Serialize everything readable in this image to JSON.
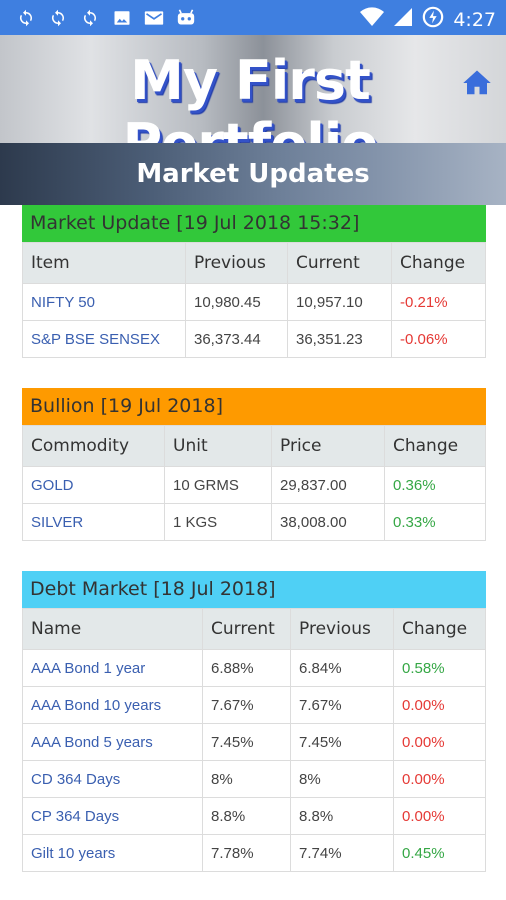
{
  "status_bar": {
    "time": "4:27",
    "left_icons": [
      "sync-icon",
      "sync-icon",
      "sync-icon",
      "image-icon",
      "mail-icon",
      "bot-icon"
    ],
    "right_icons": [
      "wifi-icon",
      "signal-icon",
      "battery-charging-icon"
    ]
  },
  "header": {
    "app_title": "My First Portfolio",
    "home_icon": "home-icon",
    "subtitle": "Market Updates"
  },
  "colors": {
    "status_bar": "#3f7fe0",
    "market_header": "#32c83a",
    "bullion_header": "#fe9a00",
    "debt_header": "#4fd0f5",
    "negative": "#e53935",
    "positive": "#35a745",
    "link": "#3a5fb0"
  },
  "market": {
    "title": "Market Update [19 Jul 2018 15:32]",
    "columns": [
      "Item",
      "Previous",
      "Current",
      "Change"
    ],
    "rows": [
      [
        "NIFTY 50",
        "10,980.45",
        "10,957.10",
        "-0.21%"
      ],
      [
        "S&P BSE SENSEX",
        "36,373.44",
        "36,351.23",
        "-0.06%"
      ]
    ]
  },
  "bullion": {
    "title": "Bullion [19 Jul 2018]",
    "columns": [
      "Commodity",
      "Unit",
      "Price",
      "Change"
    ],
    "rows": [
      [
        "GOLD",
        "10 GRMS",
        "29,837.00",
        "0.36%"
      ],
      [
        "SILVER",
        "1 KGS",
        "38,008.00",
        "0.33%"
      ]
    ]
  },
  "debt": {
    "title": "Debt Market [18 Jul 2018]",
    "columns": [
      "Name",
      "Current",
      "Previous",
      "Change"
    ],
    "rows": [
      [
        "AAA Bond 1 year",
        "6.88%",
        "6.84%",
        "0.58%"
      ],
      [
        "AAA Bond 10 years",
        "7.67%",
        "7.67%",
        "0.00%"
      ],
      [
        "AAA Bond 5 years",
        "7.45%",
        "7.45%",
        "0.00%"
      ],
      [
        "CD 364 Days",
        "8%",
        "8%",
        "0.00%"
      ],
      [
        "CP 364 Days",
        "8.8%",
        "8.8%",
        "0.00%"
      ],
      [
        "Gilt 10 years",
        "7.78%",
        "7.74%",
        "0.45%"
      ]
    ]
  }
}
